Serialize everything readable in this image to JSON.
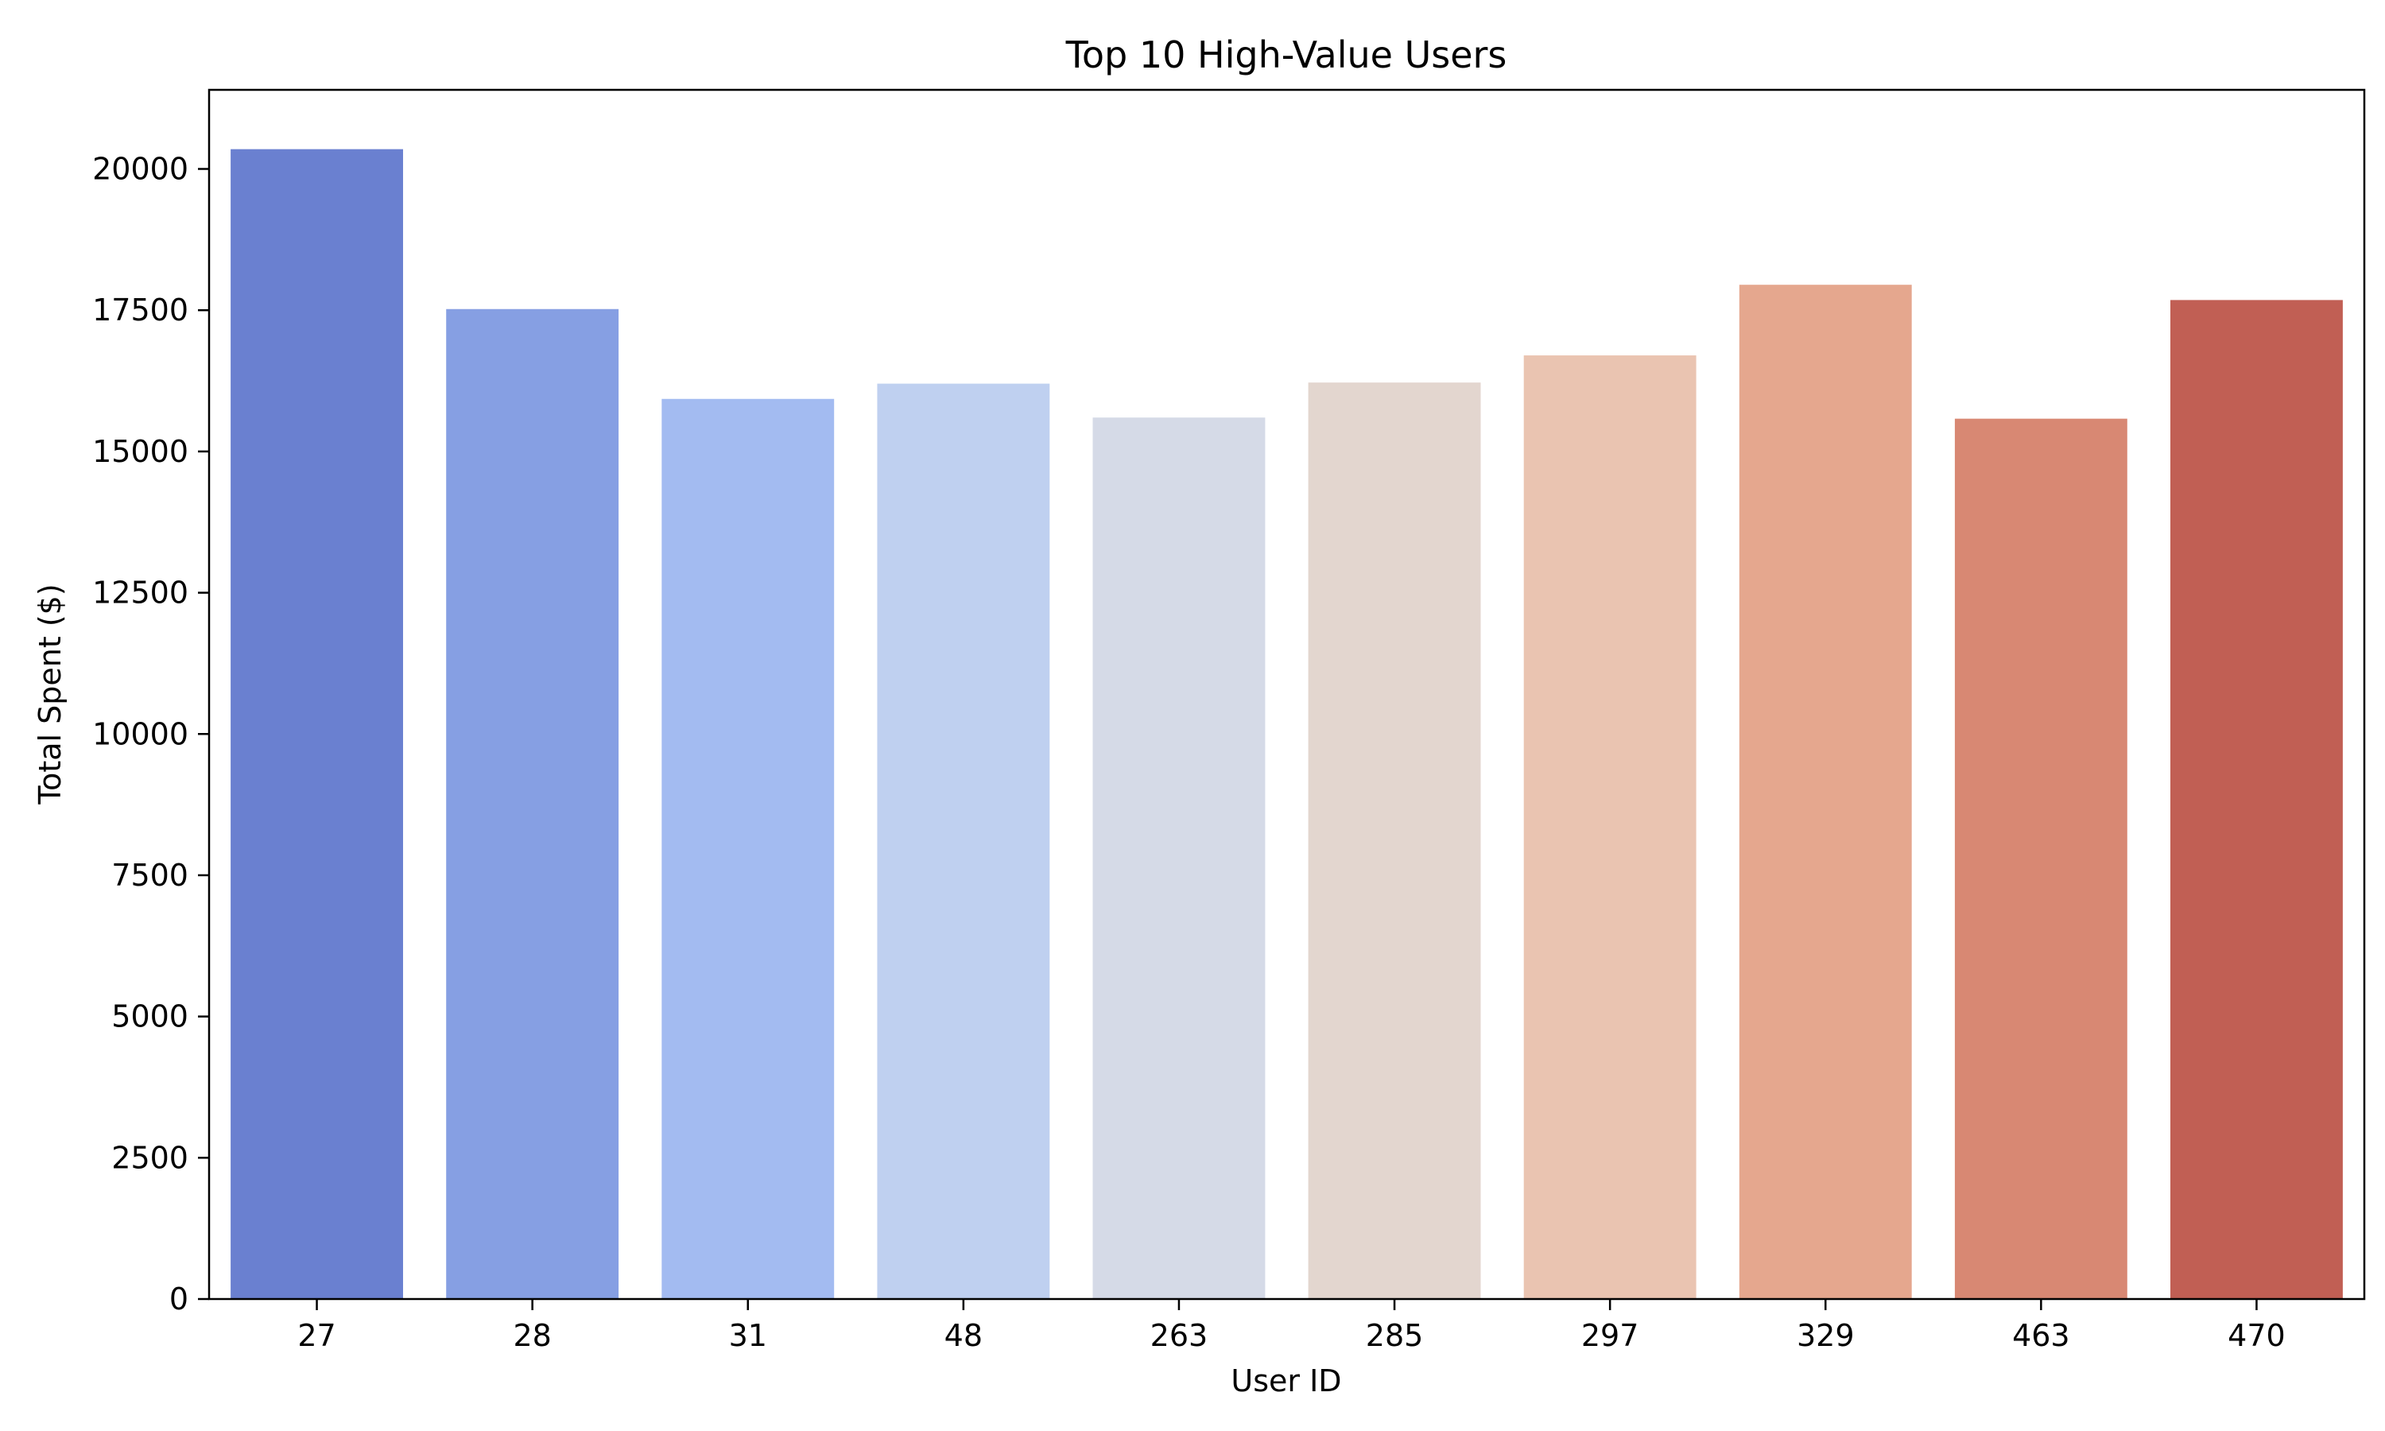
{
  "chart_data": {
    "type": "bar",
    "title": "Top 10 High-Value Users",
    "xlabel": "User ID",
    "ylabel": "Total Spent ($)",
    "categories": [
      "27",
      "28",
      "31",
      "48",
      "263",
      "285",
      "297",
      "329",
      "463",
      "470"
    ],
    "values": [
      20350,
      17520,
      15930,
      16200,
      15600,
      16220,
      16700,
      17950,
      15580,
      17680
    ],
    "colors": [
      "#6a80d0",
      "#869fe3",
      "#a3bbf1",
      "#bfd0f0",
      "#d5dae7",
      "#e3d6cf",
      "#eac4b1",
      "#e5a78e",
      "#d88873",
      "#c15f54"
    ],
    "ylim": [
      0,
      21400
    ],
    "yticks": [
      0,
      2500,
      5000,
      7500,
      10000,
      12500,
      15000,
      17500,
      20000
    ],
    "ytick_labels": [
      "0",
      "2500",
      "5000",
      "7500",
      "10000",
      "12500",
      "15000",
      "17500",
      "20000"
    ],
    "grid": false,
    "legend": "none"
  }
}
